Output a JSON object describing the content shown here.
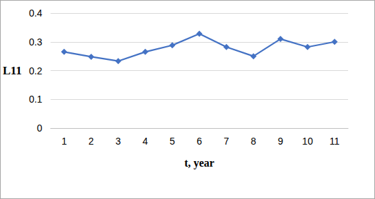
{
  "chart_data": {
    "type": "line",
    "categories": [
      "1",
      "2",
      "3",
      "4",
      "5",
      "6",
      "7",
      "8",
      "9",
      "10",
      "11"
    ],
    "values": [
      0.265,
      0.248,
      0.233,
      0.265,
      0.288,
      0.328,
      0.282,
      0.25,
      0.31,
      0.282,
      0.3
    ],
    "color": "#4472c4",
    "marker": "diamond",
    "x_label": "t, year",
    "y_label": "L11",
    "ylim": [
      0,
      0.4
    ],
    "yticks": [
      0,
      0.1,
      0.2,
      0.3,
      0.4
    ],
    "grid": true
  }
}
